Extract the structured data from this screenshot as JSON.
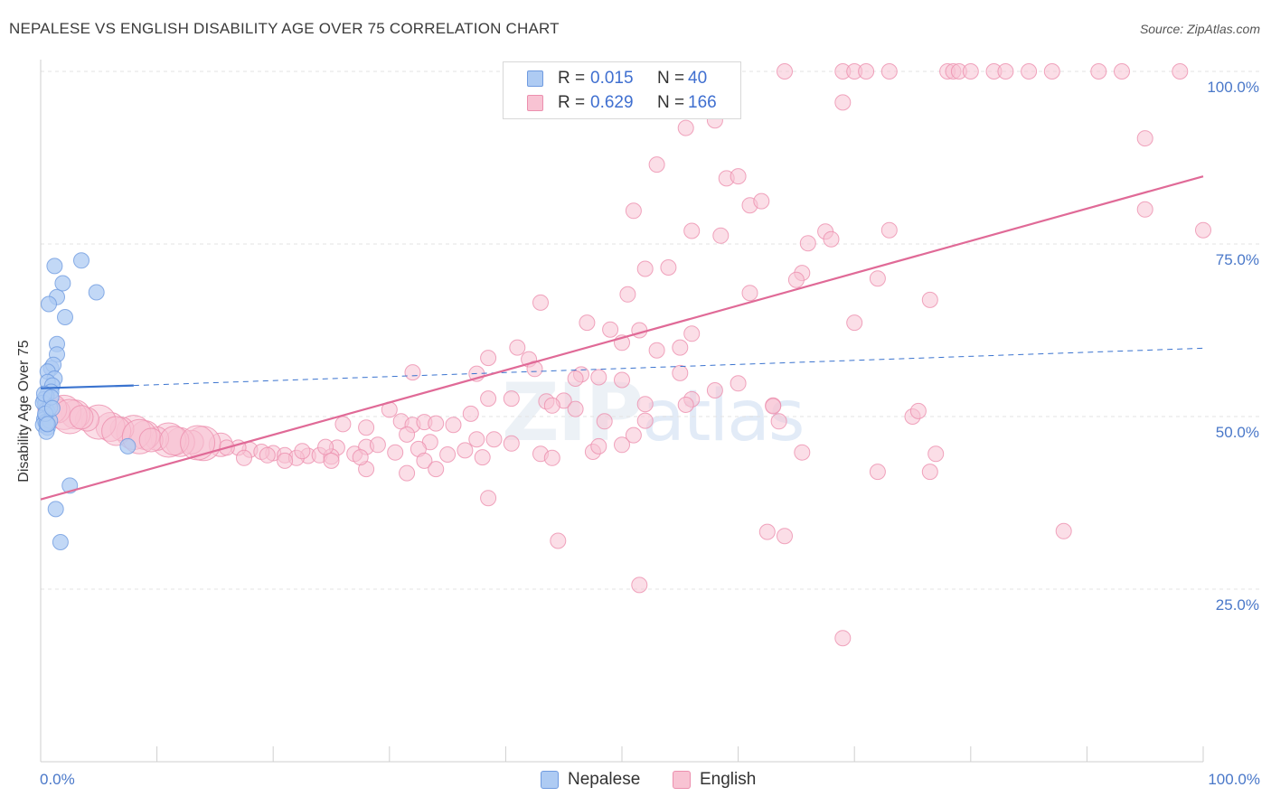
{
  "title": "NEPALESE VS ENGLISH DISABILITY AGE OVER 75 CORRELATION CHART",
  "source": "Source: ZipAtlas.com",
  "watermark": {
    "zip": "ZIP",
    "atlas": "atlas"
  },
  "legend": {
    "series": [
      {
        "name": "Nepalese",
        "r_label": "R =",
        "r": "0.015",
        "n_label": "N =",
        "n": "40",
        "fill": "#aecbf3",
        "stroke": "#6f9be0"
      },
      {
        "name": "English",
        "r_label": "R =",
        "r": "0.629",
        "n_label": "N =",
        "n": "166",
        "fill": "#f8c3d3",
        "stroke": "#ec8fae"
      }
    ]
  },
  "axes": {
    "ylabel": "Disability Age Over 75",
    "x_tick_labels": {
      "left": "0.0%",
      "right": "100.0%"
    },
    "y_tick_labels": [
      "100.0%",
      "75.0%",
      "50.0%",
      "25.0%"
    ]
  },
  "chart_data": {
    "type": "scatter",
    "title": "NEPALESE VS ENGLISH DISABILITY AGE OVER 75 CORRELATION CHART",
    "xlabel": "",
    "ylabel": "Disability Age Over 75",
    "xlim": [
      0,
      100
    ],
    "ylim": [
      0,
      101
    ],
    "y_ticks": [
      25,
      50,
      75,
      100
    ],
    "grid": true,
    "legend_position": "top-center",
    "series": [
      {
        "name": "Nepalese",
        "color": "#6f9be0",
        "fill": "#aecbf3",
        "R": 0.015,
        "N": 40,
        "trend": {
          "x": [
            0,
            8
          ],
          "y": [
            54.1,
            54.5
          ],
          "extended_to": [
            100,
            59.9
          ],
          "line_color": "#3a73cf"
        },
        "points": [
          [
            1.2,
            71.8
          ],
          [
            3.5,
            72.6
          ],
          [
            4.8,
            68.0
          ],
          [
            1.4,
            67.3
          ],
          [
            0.7,
            66.3
          ],
          [
            1.9,
            69.3
          ],
          [
            2.1,
            64.4
          ],
          [
            1.4,
            60.5
          ],
          [
            1.4,
            59.0
          ],
          [
            0.9,
            57.0
          ],
          [
            1.1,
            57.5
          ],
          [
            0.6,
            56.5
          ],
          [
            1.2,
            55.5
          ],
          [
            0.6,
            55.0
          ],
          [
            1.0,
            54.5
          ],
          [
            0.9,
            53.6
          ],
          [
            0.5,
            53.0
          ],
          [
            0.3,
            52.5
          ],
          [
            0.4,
            51.8
          ],
          [
            0.5,
            51.0
          ],
          [
            0.6,
            50.6
          ],
          [
            0.4,
            50.1
          ],
          [
            0.3,
            49.6
          ],
          [
            0.4,
            49.2
          ],
          [
            0.2,
            48.8
          ],
          [
            0.6,
            48.4
          ],
          [
            0.8,
            51.3
          ],
          [
            0.2,
            52.0
          ],
          [
            0.5,
            47.8
          ],
          [
            0.3,
            53.3
          ],
          [
            0.8,
            49.4
          ],
          [
            0.5,
            49.0
          ],
          [
            7.5,
            45.7
          ],
          [
            2.5,
            40.0
          ],
          [
            1.3,
            36.6
          ],
          [
            1.7,
            31.8
          ],
          [
            0.9,
            52.8
          ],
          [
            0.4,
            50.4
          ],
          [
            1.0,
            51.2
          ],
          [
            0.6,
            48.9
          ]
        ]
      },
      {
        "name": "English",
        "color": "#ec8fae",
        "fill": "#f8c3d3",
        "R": 0.629,
        "N": 166,
        "trend": {
          "x": [
            0,
            100
          ],
          "y": [
            38.0,
            84.8
          ],
          "line_color": "#e06a97"
        },
        "points": [
          [
            64,
            100
          ],
          [
            69,
            100
          ],
          [
            70,
            100
          ],
          [
            71,
            100
          ],
          [
            73,
            100
          ],
          [
            78,
            100
          ],
          [
            78.5,
            100
          ],
          [
            79,
            100
          ],
          [
            80,
            100
          ],
          [
            82,
            100
          ],
          [
            83,
            100
          ],
          [
            85,
            100
          ],
          [
            87,
            100
          ],
          [
            91,
            100
          ],
          [
            93,
            100
          ],
          [
            98,
            100
          ],
          [
            69,
            95.5
          ],
          [
            55.5,
            91.8
          ],
          [
            58,
            92.9
          ],
          [
            95,
            90.3
          ],
          [
            53,
            86.5
          ],
          [
            59,
            84.5
          ],
          [
            60,
            84.8
          ],
          [
            51,
            79.8
          ],
          [
            61,
            80.6
          ],
          [
            62,
            81.2
          ],
          [
            95,
            80.0
          ],
          [
            100,
            77.0
          ],
          [
            56,
            76.9
          ],
          [
            58.5,
            76.2
          ],
          [
            66,
            75.1
          ],
          [
            67.5,
            76.8
          ],
          [
            68,
            75.7
          ],
          [
            73,
            77.0
          ],
          [
            52,
            71.4
          ],
          [
            54,
            71.6
          ],
          [
            65.5,
            70.8
          ],
          [
            65,
            69.8
          ],
          [
            72,
            70.0
          ],
          [
            50.5,
            67.7
          ],
          [
            61,
            67.9
          ],
          [
            76.5,
            66.9
          ],
          [
            43,
            66.5
          ],
          [
            47,
            63.6
          ],
          [
            49,
            62.6
          ],
          [
            51.5,
            62.5
          ],
          [
            56,
            62.0
          ],
          [
            70,
            63.6
          ],
          [
            41,
            60.0
          ],
          [
            50,
            60.7
          ],
          [
            53,
            59.6
          ],
          [
            55,
            60.0
          ],
          [
            38.5,
            58.5
          ],
          [
            42,
            58.3
          ],
          [
            42.5,
            56.9
          ],
          [
            48,
            55.7
          ],
          [
            32,
            56.4
          ],
          [
            37.5,
            56.2
          ],
          [
            55,
            56.3
          ],
          [
            46.5,
            56.1
          ],
          [
            46,
            55.5
          ],
          [
            50,
            55.3
          ],
          [
            56,
            52.5
          ],
          [
            60,
            54.8
          ],
          [
            58,
            53.8
          ],
          [
            38.5,
            52.6
          ],
          [
            40.5,
            52.6
          ],
          [
            43.5,
            52.2
          ],
          [
            45,
            52.3
          ],
          [
            44,
            51.6
          ],
          [
            48.5,
            49.3
          ],
          [
            52,
            51.8
          ],
          [
            63,
            51.6
          ],
          [
            63.5,
            49.3
          ],
          [
            75,
            50.0
          ],
          [
            75.5,
            50.8
          ],
          [
            30,
            51.0
          ],
          [
            31,
            49.3
          ],
          [
            32,
            48.8
          ],
          [
            33,
            49.2
          ],
          [
            34,
            49.0
          ],
          [
            35.5,
            48.8
          ],
          [
            37,
            50.4
          ],
          [
            46,
            51.1
          ],
          [
            26,
            48.9
          ],
          [
            28,
            48.4
          ],
          [
            31.5,
            47.4
          ],
          [
            33.5,
            46.3
          ],
          [
            35,
            44.5
          ],
          [
            36.5,
            45.1
          ],
          [
            37.5,
            46.7
          ],
          [
            39,
            46.7
          ],
          [
            40.5,
            46.1
          ],
          [
            43,
            44.6
          ],
          [
            44,
            44.0
          ],
          [
            47.5,
            44.9
          ],
          [
            50,
            45.9
          ],
          [
            51,
            47.3
          ],
          [
            52,
            49.4
          ],
          [
            55.5,
            51.7
          ],
          [
            63,
            51.5
          ],
          [
            65.5,
            44.8
          ],
          [
            25.5,
            45.5
          ],
          [
            27,
            44.6
          ],
          [
            28,
            45.6
          ],
          [
            29,
            45.9
          ],
          [
            30.5,
            44.8
          ],
          [
            32.5,
            45.3
          ],
          [
            33,
            43.6
          ],
          [
            34,
            42.4
          ],
          [
            38,
            44.1
          ],
          [
            38.5,
            38.2
          ],
          [
            31.5,
            41.8
          ],
          [
            28,
            42.4
          ],
          [
            27.5,
            44.1
          ],
          [
            23,
            44.3
          ],
          [
            24,
            44.4
          ],
          [
            25,
            44.2
          ],
          [
            20,
            44.7
          ],
          [
            21,
            44.4
          ],
          [
            22,
            44.0
          ],
          [
            22.5,
            45.0
          ],
          [
            18,
            45.2
          ],
          [
            19,
            44.9
          ],
          [
            19.5,
            44.4
          ],
          [
            17,
            45.5
          ],
          [
            15.5,
            45.9
          ],
          [
            16,
            45.5
          ],
          [
            14,
            46.1
          ],
          [
            13,
            46.3
          ],
          [
            12,
            46.3
          ],
          [
            11,
            46.6
          ],
          [
            10,
            46.8
          ],
          [
            9,
            47.3
          ],
          [
            8,
            47.7
          ],
          [
            7,
            48.2
          ],
          [
            6,
            48.5
          ],
          [
            5,
            49.2
          ],
          [
            4,
            49.6
          ],
          [
            3,
            50.3
          ],
          [
            2,
            50.6
          ],
          [
            1.5,
            50.8
          ],
          [
            1,
            51.1
          ],
          [
            2.5,
            50.0
          ],
          [
            3.5,
            49.9
          ],
          [
            6.5,
            47.9
          ],
          [
            8.5,
            47.1
          ],
          [
            9.5,
            46.6
          ],
          [
            11.5,
            46.5
          ],
          [
            13.5,
            46.2
          ],
          [
            17.5,
            44.0
          ],
          [
            24.5,
            45.6
          ],
          [
            25,
            43.6
          ],
          [
            21,
            43.6
          ],
          [
            44.5,
            32.0
          ],
          [
            62.5,
            33.3
          ],
          [
            64,
            32.7
          ],
          [
            88,
            33.4
          ],
          [
            51.5,
            25.6
          ],
          [
            69,
            17.9
          ],
          [
            76.5,
            42.0
          ],
          [
            72,
            42.0
          ],
          [
            77,
            44.6
          ],
          [
            48,
            45.7
          ]
        ]
      }
    ]
  }
}
